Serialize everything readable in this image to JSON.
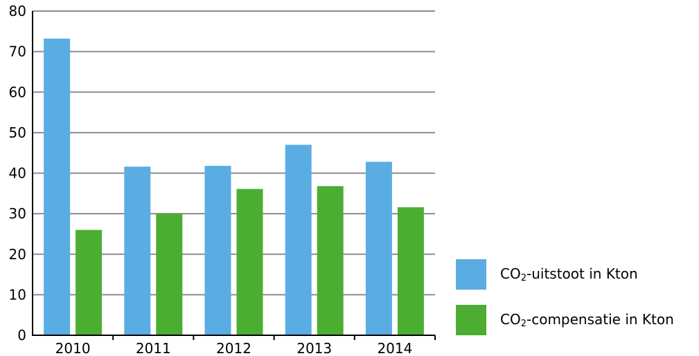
{
  "chart_data": {
    "type": "bar",
    "categories": [
      "2010",
      "2011",
      "2012",
      "2013",
      "2014"
    ],
    "series": [
      {
        "name": "CO₂-uitstoot in Kton",
        "color": "#5aade3",
        "values": [
          73.2,
          41.6,
          41.8,
          47.0,
          42.8
        ]
      },
      {
        "name": "CO₂-compensatie in Kton",
        "color": "#4cad33",
        "values": [
          26.0,
          30.0,
          36.1,
          36.8,
          31.6
        ]
      }
    ],
    "ylim": [
      0,
      80
    ],
    "yticks": [
      0,
      10,
      20,
      30,
      40,
      50,
      60,
      70,
      80
    ],
    "grid": true,
    "legend_position": "bottom-right"
  },
  "legend": [
    {
      "prefix": "CO",
      "sub": "2",
      "suffix": "-uitstoot in Kton",
      "color": "#5aade3"
    },
    {
      "prefix": "CO",
      "sub": "2",
      "suffix": "-compensatie in Kton",
      "color": "#4cad33"
    }
  ],
  "colors": {
    "grid": "#8c8c8c",
    "axis": "#000000"
  }
}
